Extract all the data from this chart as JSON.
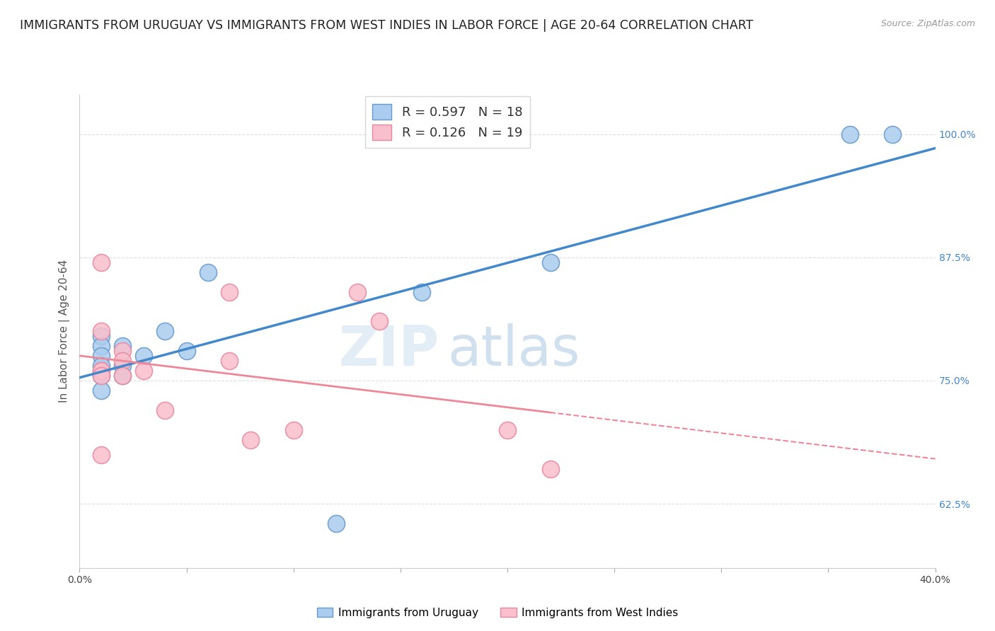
{
  "title": "IMMIGRANTS FROM URUGUAY VS IMMIGRANTS FROM WEST INDIES IN LABOR FORCE | AGE 20-64 CORRELATION CHART",
  "source": "Source: ZipAtlas.com",
  "ylabel": "In Labor Force | Age 20-64",
  "watermark_zip": "ZIP",
  "watermark_atlas": "atlas",
  "xlim": [
    0.0,
    0.4
  ],
  "ylim": [
    0.56,
    1.04
  ],
  "x_ticks": [
    0.0,
    0.05,
    0.1,
    0.15,
    0.2,
    0.25,
    0.3,
    0.35,
    0.4
  ],
  "x_tick_labels": [
    "0.0%",
    "",
    "",
    "",
    "",
    "",
    "",
    "",
    "40.0%"
  ],
  "y_ticks_right": [
    0.625,
    0.75,
    0.875,
    1.0
  ],
  "y_tick_labels_right": [
    "62.5%",
    "75.0%",
    "87.5%",
    "100.0%"
  ],
  "uruguay_color": "#aaccee",
  "uruguay_edge_color": "#6699cc",
  "west_indies_color": "#f9bfcc",
  "west_indies_edge_color": "#e888a0",
  "uruguay_line_color": "#4488cc",
  "west_indies_line_color": "#ee8899",
  "R_uruguay": 0.597,
  "N_uruguay": 18,
  "R_west_indies": 0.126,
  "N_west_indies": 19,
  "uruguay_scatter_x": [
    0.01,
    0.01,
    0.01,
    0.01,
    0.01,
    0.01,
    0.02,
    0.02,
    0.02,
    0.03,
    0.04,
    0.05,
    0.06,
    0.12,
    0.16,
    0.22,
    0.36,
    0.38
  ],
  "uruguay_scatter_y": [
    0.795,
    0.785,
    0.775,
    0.765,
    0.755,
    0.74,
    0.785,
    0.765,
    0.755,
    0.775,
    0.8,
    0.78,
    0.86,
    0.605,
    0.84,
    0.87,
    1.0,
    1.0
  ],
  "west_indies_scatter_x": [
    0.01,
    0.01,
    0.01,
    0.01,
    0.01,
    0.01,
    0.02,
    0.02,
    0.02,
    0.03,
    0.04,
    0.07,
    0.07,
    0.08,
    0.1,
    0.13,
    0.14,
    0.2,
    0.22
  ],
  "west_indies_scatter_y": [
    0.87,
    0.8,
    0.76,
    0.76,
    0.755,
    0.675,
    0.78,
    0.77,
    0.755,
    0.76,
    0.72,
    0.84,
    0.77,
    0.69,
    0.7,
    0.84,
    0.81,
    0.7,
    0.66
  ],
  "background_color": "#ffffff",
  "grid_color": "#dddddd",
  "title_fontsize": 12.5,
  "axis_label_fontsize": 11,
  "tick_fontsize": 10,
  "legend_fontsize": 13
}
